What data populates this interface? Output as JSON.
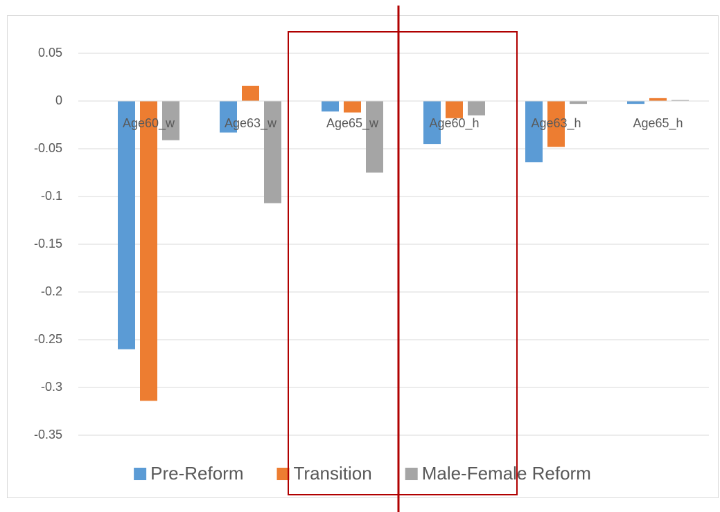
{
  "chart_data": {
    "type": "bar",
    "categories": [
      "Age60_w",
      "Age63_w",
      "Age65_w",
      "Age60_h",
      "Age63_h",
      "Age65_h"
    ],
    "series": [
      {
        "name": "Pre-Reform",
        "color": "#5b9bd5",
        "values": [
          -0.26,
          -0.033,
          -0.011,
          -0.045,
          -0.064,
          -0.003
        ]
      },
      {
        "name": "Transition",
        "color": "#ed7d31",
        "values": [
          -0.314,
          0.016,
          -0.012,
          -0.018,
          -0.048,
          0.003
        ]
      },
      {
        "name": "Male-Female Reform",
        "color": "#a5a5a5",
        "values": [
          -0.041,
          -0.107,
          -0.075,
          -0.015,
          -0.003,
          0.001
        ]
      }
    ],
    "ylim": [
      -0.35,
      0.05
    ],
    "yticks": [
      0.05,
      0,
      -0.05,
      -0.1,
      -0.15,
      -0.2,
      -0.25,
      -0.3,
      -0.35
    ],
    "grid": true,
    "legend": "bottom"
  }
}
